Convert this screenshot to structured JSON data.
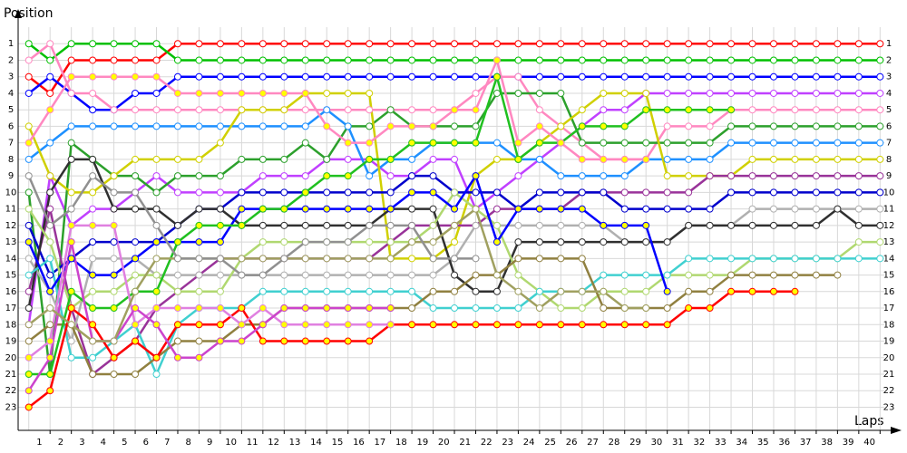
{
  "chart_data": {
    "type": "lap",
    "ylabel": "Position",
    "xlabel": "Laps",
    "x": [
      0,
      1,
      2,
      3,
      4,
      5,
      6,
      7,
      8,
      9,
      10,
      11,
      12,
      13,
      14,
      15,
      16,
      17,
      18,
      19,
      20,
      21,
      22,
      23,
      24,
      25,
      26,
      27,
      28,
      29,
      30,
      31,
      32,
      33,
      34,
      35,
      36,
      37,
      38,
      39,
      40
    ],
    "xlim": [
      -0.5,
      40.2
    ],
    "ylim": [
      24.4,
      0
    ],
    "xticks": [
      1,
      2,
      3,
      4,
      5,
      6,
      7,
      8,
      9,
      10,
      11,
      12,
      13,
      14,
      15,
      16,
      17,
      18,
      19,
      20,
      21,
      22,
      23,
      24,
      25,
      26,
      27,
      28,
      29,
      30,
      31,
      32,
      33,
      34,
      35,
      36,
      37,
      38,
      39,
      40
    ],
    "yticks": [
      1,
      2,
      3,
      4,
      5,
      6,
      7,
      8,
      9,
      10,
      11,
      12,
      13,
      14,
      15,
      16,
      17,
      18,
      19,
      20,
      21,
      22,
      23
    ],
    "grid": true,
    "series": [
      {
        "color": "#ff0000",
        "marker_color": "#ffffff",
        "values": [
          3,
          4,
          2,
          2,
          2,
          2,
          2,
          1,
          1,
          1,
          1,
          1,
          1,
          1,
          1,
          1,
          1,
          1,
          1,
          1,
          1,
          1,
          1,
          1,
          1,
          1,
          1,
          1,
          1,
          1,
          1,
          1,
          1,
          1,
          1,
          1,
          1,
          1,
          1,
          1,
          1
        ]
      },
      {
        "color": "#00c000",
        "marker_color": "#ffffff",
        "values": [
          1,
          2,
          1,
          1,
          1,
          1,
          1,
          2,
          2,
          2,
          2,
          2,
          2,
          2,
          2,
          2,
          2,
          2,
          2,
          2,
          2,
          2,
          2,
          2,
          2,
          2,
          2,
          2,
          2,
          2,
          2,
          2,
          2,
          2,
          2,
          2,
          2,
          2,
          2,
          2,
          2
        ]
      },
      {
        "color": "#0000ff",
        "marker_color": "#ffffff",
        "values": [
          4,
          3,
          4,
          5,
          5,
          4,
          4,
          3,
          3,
          3,
          3,
          3,
          3,
          3,
          3,
          3,
          3,
          3,
          3,
          3,
          3,
          3,
          3,
          3,
          3,
          3,
          3,
          3,
          3,
          3,
          3,
          3,
          3,
          3,
          3,
          3,
          3,
          3,
          3,
          3,
          3
        ]
      },
      {
        "color": "#c040ff",
        "marker_color": "#ffffff",
        "values": [
          18,
          9,
          12,
          11,
          11,
          10,
          9,
          10,
          10,
          10,
          10,
          9,
          9,
          9,
          8,
          8,
          8,
          9,
          9,
          8,
          8,
          11,
          10,
          9,
          8,
          7,
          6,
          5,
          5,
          4,
          4,
          4,
          4,
          4,
          4,
          4,
          4,
          4,
          4,
          4,
          4
        ]
      },
      {
        "color": "#ff88c0",
        "marker_color": "#ffffff",
        "values": [
          2,
          1,
          4,
          4,
          5,
          5,
          5,
          5,
          5,
          5,
          5,
          5,
          5,
          5,
          5,
          5,
          5,
          5,
          5,
          5,
          5,
          4,
          3,
          3,
          5,
          6,
          7,
          8,
          8,
          8,
          6,
          6,
          6,
          5,
          5,
          5,
          5,
          5,
          5,
          5,
          5
        ]
      },
      {
        "color": "#2ca02c",
        "marker_color": "#ffffff",
        "values": [
          10,
          21,
          7,
          8,
          9,
          9,
          10,
          9,
          9,
          9,
          8,
          8,
          8,
          7,
          8,
          6,
          6,
          5,
          6,
          6,
          6,
          6,
          4,
          4,
          4,
          4,
          7,
          7,
          7,
          7,
          7,
          7,
          7,
          6,
          6,
          6,
          6,
          6,
          6,
          6,
          6
        ]
      },
      {
        "color": "#1e90ff",
        "marker_color": "#ffffff",
        "values": [
          8,
          7,
          6,
          6,
          6,
          6,
          6,
          6,
          6,
          6,
          6,
          6,
          6,
          6,
          5,
          6,
          9,
          8,
          8,
          7,
          7,
          7,
          7,
          8,
          8,
          9,
          9,
          9,
          9,
          8,
          8,
          8,
          8,
          7,
          7,
          7,
          7,
          7,
          7,
          7,
          7
        ]
      },
      {
        "color": "#d0d000",
        "marker_color": "#ffffff",
        "values": [
          6,
          9,
          10,
          10,
          9,
          8,
          8,
          8,
          8,
          7,
          5,
          5,
          5,
          4,
          4,
          4,
          4,
          14,
          14,
          14,
          13,
          9,
          8,
          8,
          7,
          6,
          5,
          4,
          4,
          4,
          9,
          9,
          9,
          9,
          8,
          8,
          8,
          8,
          8,
          8,
          8
        ]
      },
      {
        "color": "#993399",
        "marker_color": "#ffffff",
        "values": [
          16,
          11,
          17,
          21,
          20,
          19,
          17,
          16,
          15,
          14,
          14,
          14,
          14,
          14,
          14,
          14,
          14,
          13,
          12,
          12,
          12,
          12,
          11,
          11,
          11,
          11,
          10,
          10,
          10,
          10,
          10,
          10,
          9,
          9,
          9,
          9,
          9,
          9,
          9,
          9,
          9
        ]
      },
      {
        "color": "#0000cc",
        "marker_color": "#ffffff",
        "values": [
          12,
          15,
          14,
          13,
          13,
          13,
          13,
          12,
          11,
          11,
          10,
          10,
          10,
          10,
          10,
          10,
          10,
          10,
          9,
          9,
          10,
          10,
          10,
          11,
          10,
          10,
          10,
          10,
          11,
          11,
          11,
          11,
          11,
          10,
          10,
          10,
          10,
          10,
          10,
          10,
          10
        ]
      },
      {
        "color": "#b0b0b0",
        "marker_color": "#ffffff",
        "values": [
          14,
          16,
          19,
          14,
          14,
          14,
          15,
          15,
          15,
          15,
          15,
          15,
          15,
          15,
          15,
          15,
          15,
          15,
          15,
          15,
          14,
          12,
          12,
          12,
          12,
          12,
          12,
          12,
          13,
          13,
          13,
          12,
          12,
          12,
          11,
          11,
          11,
          11,
          11,
          11,
          11
        ]
      },
      {
        "color": "#303030",
        "marker_color": "#ffffff",
        "values": [
          17,
          10,
          8,
          8,
          11,
          11,
          11,
          12,
          11,
          11,
          12,
          12,
          12,
          12,
          12,
          12,
          12,
          11,
          11,
          11,
          15,
          16,
          16,
          13,
          13,
          13,
          13,
          13,
          13,
          13,
          13,
          12,
          12,
          12,
          12,
          12,
          12,
          12,
          11,
          12,
          12
        ]
      },
      {
        "color": "#b0d870",
        "marker_color": "#ffffff",
        "values": [
          11,
          13,
          17,
          16,
          16,
          15,
          15,
          16,
          16,
          16,
          14,
          13,
          13,
          13,
          13,
          13,
          13,
          13,
          13,
          12,
          10,
          11,
          12,
          15,
          16,
          17,
          17,
          16,
          16,
          16,
          15,
          15,
          15,
          15,
          14,
          14,
          14,
          14,
          14,
          13,
          13
        ]
      },
      {
        "color": "#40d0d0",
        "marker_color": "#ffffff",
        "values": [
          15,
          14,
          20,
          20,
          19,
          18,
          21,
          18,
          17,
          17,
          17,
          16,
          16,
          16,
          16,
          16,
          16,
          16,
          16,
          17,
          17,
          17,
          17,
          17,
          16,
          16,
          16,
          15,
          15,
          15,
          15,
          14,
          14,
          14,
          14,
          14,
          14,
          14,
          14,
          14,
          14
        ]
      },
      {
        "color": "#908040",
        "marker_color": "#ffffff",
        "values": [
          19,
          18,
          18,
          21,
          21,
          21,
          20,
          19,
          19,
          19,
          18,
          18,
          17,
          17,
          17,
          17,
          17,
          17,
          17,
          16,
          16,
          15,
          15,
          14,
          14,
          14,
          14,
          17,
          17,
          17,
          17,
          16,
          16,
          15,
          15,
          15,
          15,
          15,
          15,
          null,
          null
        ]
      },
      {
        "color": "#ff0000",
        "marker_color": "#ffff00",
        "values": [
          23,
          22,
          17,
          18,
          20,
          19,
          20,
          18,
          18,
          18,
          17,
          19,
          19,
          19,
          19,
          19,
          19,
          18,
          18,
          18,
          18,
          18,
          18,
          18,
          18,
          18,
          18,
          18,
          18,
          18,
          18,
          17,
          17,
          16,
          16,
          16,
          16,
          null,
          null,
          null,
          null
        ]
      },
      {
        "color": "#0000ff",
        "marker_color": "#ffff00",
        "values": [
          13,
          16,
          14,
          15,
          15,
          14,
          13,
          13,
          13,
          13,
          11,
          11,
          11,
          11,
          11,
          11,
          11,
          11,
          10,
          10,
          11,
          9,
          13,
          11,
          11,
          11,
          11,
          12,
          12,
          12,
          16,
          null,
          null,
          null,
          null,
          null,
          null,
          null,
          null,
          null,
          null
        ]
      },
      {
        "color": "#20c020",
        "marker_color": "#ffff00",
        "values": [
          21,
          21,
          16,
          17,
          17,
          16,
          16,
          13,
          12,
          12,
          12,
          11,
          11,
          10,
          9,
          9,
          8,
          8,
          7,
          7,
          7,
          7,
          3,
          8,
          7,
          7,
          6,
          6,
          6,
          5,
          5,
          5,
          5,
          5,
          null,
          null,
          null,
          null,
          null,
          null,
          null
        ]
      },
      {
        "color": "#ff88c0",
        "marker_color": "#ffff00",
        "values": [
          7,
          5,
          3,
          3,
          3,
          3,
          3,
          4,
          4,
          4,
          4,
          4,
          4,
          4,
          6,
          7,
          7,
          6,
          6,
          6,
          5,
          5,
          2,
          7,
          6,
          7,
          8,
          8,
          8,
          8,
          null,
          null,
          null,
          null,
          null,
          null,
          null,
          null,
          null,
          null,
          null
        ]
      },
      {
        "color": "#e080e0",
        "marker_color": "#ffff00",
        "values": [
          20,
          19,
          12,
          12,
          12,
          18,
          17,
          17,
          17,
          17,
          18,
          17,
          18,
          18,
          18,
          18,
          18,
          18,
          null,
          null,
          null,
          null,
          null,
          null,
          null,
          null,
          null,
          null,
          null,
          null,
          null,
          null,
          null,
          null,
          null,
          null,
          null,
          null,
          null,
          null,
          null
        ]
      },
      {
        "color": "#cc44cc",
        "marker_color": "#ffff00",
        "values": [
          22,
          20,
          13,
          19,
          19,
          17,
          18,
          20,
          20,
          19,
          19,
          18,
          17,
          17,
          17,
          17,
          17,
          17,
          null,
          null,
          null,
          null,
          null,
          null,
          null,
          null,
          null,
          null,
          null,
          null,
          null,
          null,
          null,
          null,
          null,
          null,
          null,
          null,
          null,
          null,
          null
        ]
      },
      {
        "color": "#a0a060",
        "marker_color": "#ffffff",
        "values": [
          18,
          17,
          18,
          19,
          19,
          16,
          14,
          14,
          14,
          14,
          14,
          14,
          14,
          14,
          14,
          14,
          14,
          14,
          13,
          13,
          12,
          11,
          15,
          16,
          17,
          16,
          16,
          16,
          17,
          17,
          null,
          null,
          null,
          null,
          null,
          null,
          null,
          null,
          null,
          null,
          null
        ]
      },
      {
        "color": "#909090",
        "marker_color": "#ffffff",
        "values": [
          9,
          12,
          11,
          9,
          10,
          10,
          12,
          14,
          14,
          14,
          15,
          15,
          14,
          13,
          13,
          13,
          12,
          12,
          12,
          14,
          14,
          14,
          null,
          null,
          null,
          null,
          null,
          null,
          null,
          null,
          null,
          null,
          null,
          null,
          null,
          null,
          null,
          null,
          null,
          null,
          null
        ]
      }
    ]
  }
}
